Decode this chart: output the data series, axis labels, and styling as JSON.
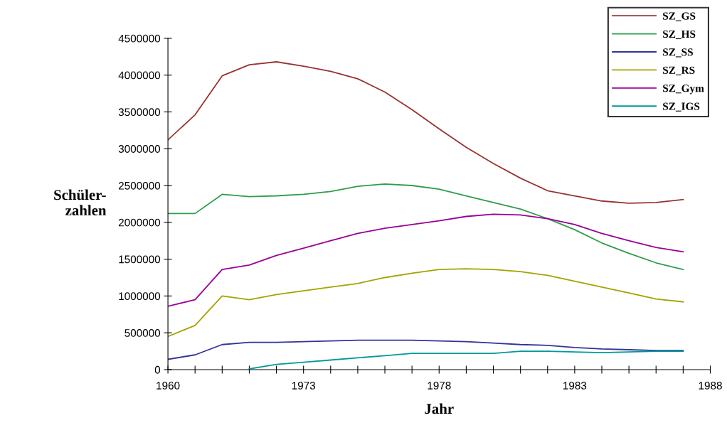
{
  "chart_data": {
    "type": "line",
    "xlabel": "Jahr",
    "ylabel": "Schüler-\nzahlen",
    "categories": [
      "1960",
      null,
      null,
      null,
      null,
      "1973",
      null,
      null,
      null,
      null,
      "1978",
      null,
      null,
      null,
      null,
      "1983",
      null,
      null,
      null,
      null,
      "1988"
    ],
    "series": [
      {
        "name": "SZ_GS",
        "color": "#993333",
        "values": [
          3120000,
          3460000,
          3990000,
          4140000,
          4180000,
          4120000,
          4050000,
          3950000,
          3770000,
          3530000,
          3270000,
          3020000,
          2800000,
          2600000,
          2430000,
          2360000,
          2290000,
          2260000,
          2270000,
          2310000,
          null
        ]
      },
      {
        "name": "SZ_HS",
        "color": "#2e9e4a",
        "values": [
          2120000,
          2120000,
          2380000,
          2350000,
          2360000,
          2380000,
          2420000,
          2490000,
          2520000,
          2500000,
          2450000,
          2360000,
          2270000,
          2180000,
          2050000,
          1900000,
          1720000,
          1580000,
          1450000,
          1360000,
          null
        ]
      },
      {
        "name": "SZ_SS",
        "color": "#333399",
        "values": [
          140000,
          200000,
          340000,
          370000,
          370000,
          380000,
          390000,
          400000,
          400000,
          400000,
          390000,
          380000,
          360000,
          340000,
          330000,
          300000,
          280000,
          270000,
          260000,
          260000,
          null
        ]
      },
      {
        "name": "SZ_RS",
        "color": "#a3a300",
        "values": [
          450000,
          600000,
          1000000,
          950000,
          1020000,
          1070000,
          1120000,
          1170000,
          1250000,
          1310000,
          1360000,
          1370000,
          1360000,
          1330000,
          1280000,
          1200000,
          1120000,
          1040000,
          960000,
          920000,
          null
        ]
      },
      {
        "name": "SZ_Gym",
        "color": "#990099",
        "values": [
          860000,
          950000,
          1360000,
          1420000,
          1550000,
          1650000,
          1750000,
          1850000,
          1920000,
          1970000,
          2020000,
          2080000,
          2110000,
          2100000,
          2050000,
          1970000,
          1850000,
          1750000,
          1660000,
          1600000,
          null
        ]
      },
      {
        "name": "SZ_IGS",
        "color": "#009999",
        "values": [
          null,
          null,
          null,
          10000,
          70000,
          100000,
          130000,
          160000,
          190000,
          220000,
          220000,
          220000,
          220000,
          250000,
          250000,
          240000,
          230000,
          240000,
          250000,
          250000,
          null
        ]
      }
    ],
    "ylim": [
      0,
      4500000
    ],
    "yticks": [
      0,
      500000,
      1000000,
      1500000,
      2000000,
      2500000,
      3000000,
      3500000,
      4000000,
      4500000
    ],
    "grid": false,
    "legend": "top right",
    "marker": "none",
    "line_style": "solid"
  }
}
